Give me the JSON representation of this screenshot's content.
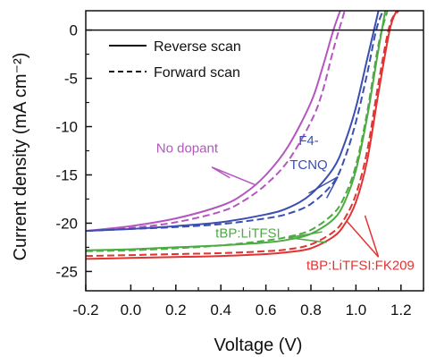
{
  "chart_data": {
    "type": "line",
    "xlabel": "Voltage (V)",
    "ylabel": "Current density (mA cm⁻²)",
    "xlim": [
      -0.2,
      1.3
    ],
    "ylim": [
      -27,
      2
    ],
    "xticks": [
      -0.2,
      0.0,
      0.2,
      0.4,
      0.6,
      0.8,
      1.0,
      1.2
    ],
    "xtick_labels": [
      "-0.2",
      "0.0",
      "0.2",
      "0.4",
      "0.6",
      "0.8",
      "1.0",
      "1.2"
    ],
    "yticks": [
      0,
      -5,
      -10,
      -15,
      -20,
      -25
    ],
    "ytick_labels": [
      "0",
      "-5",
      "-10",
      "-15",
      "-20",
      "-25"
    ],
    "grid": false,
    "legend": {
      "position": "top-left",
      "entries": [
        {
          "label": "Reverse scan",
          "style": "solid"
        },
        {
          "label": "Forward scan",
          "style": "dashed"
        }
      ]
    },
    "series": [
      {
        "group": "No dopant",
        "color": "#b455c0",
        "style": "solid",
        "x": [
          -0.2,
          0.0,
          0.2,
          0.4,
          0.5,
          0.6,
          0.7,
          0.8,
          0.85,
          0.9,
          0.93
        ],
        "y": [
          -20.8,
          -20.3,
          -19.5,
          -18.2,
          -17.0,
          -15.0,
          -12.0,
          -7.5,
          -4.0,
          0.0,
          2.0
        ]
      },
      {
        "group": "No dopant",
        "color": "#b455c0",
        "style": "dashed",
        "x": [
          -0.2,
          0.0,
          0.2,
          0.4,
          0.5,
          0.6,
          0.7,
          0.8,
          0.85,
          0.9,
          0.95
        ],
        "y": [
          -20.8,
          -20.5,
          -19.9,
          -18.8,
          -17.7,
          -16.0,
          -13.5,
          -9.5,
          -6.5,
          -2.0,
          2.0
        ]
      },
      {
        "group": "F4-TCNQ",
        "color": "#3b4fb0",
        "style": "solid",
        "x": [
          -0.2,
          0.0,
          0.2,
          0.4,
          0.6,
          0.7,
          0.8,
          0.9,
          0.95,
          1.0,
          1.05,
          1.08,
          1.1
        ],
        "y": [
          -20.8,
          -20.6,
          -20.3,
          -19.9,
          -19.1,
          -18.4,
          -17.0,
          -14.3,
          -11.7,
          -8.0,
          -3.0,
          0.0,
          2.0
        ]
      },
      {
        "group": "F4-TCNQ",
        "color": "#3b4fb0",
        "style": "dashed",
        "x": [
          -0.2,
          0.0,
          0.2,
          0.4,
          0.6,
          0.7,
          0.8,
          0.9,
          0.95,
          1.0,
          1.05,
          1.09,
          1.12
        ],
        "y": [
          -20.8,
          -20.6,
          -20.4,
          -20.1,
          -19.5,
          -19.0,
          -18.0,
          -15.8,
          -13.3,
          -9.5,
          -4.5,
          0.0,
          2.0
        ]
      },
      {
        "group": "tBP:LiTFSI",
        "color": "#4cab42",
        "style": "solid",
        "x": [
          -0.2,
          0.0,
          0.2,
          0.4,
          0.6,
          0.7,
          0.8,
          0.9,
          0.95,
          1.0,
          1.05,
          1.1,
          1.13
        ],
        "y": [
          -22.8,
          -22.7,
          -22.5,
          -22.3,
          -22.0,
          -21.7,
          -21.1,
          -19.6,
          -17.8,
          -14.5,
          -9.0,
          -2.0,
          2.0
        ]
      },
      {
        "group": "tBP:LiTFSI",
        "color": "#4cab42",
        "style": "dashed",
        "x": [
          -0.2,
          0.0,
          0.2,
          0.4,
          0.6,
          0.7,
          0.8,
          0.9,
          0.95,
          1.0,
          1.05,
          1.1,
          1.14
        ],
        "y": [
          -22.9,
          -22.8,
          -22.6,
          -22.3,
          -21.8,
          -21.4,
          -20.7,
          -19.0,
          -17.2,
          -14.0,
          -8.5,
          -1.5,
          2.0
        ]
      },
      {
        "group": "tBP:LiTFSI:FK209",
        "color": "#e23333",
        "style": "solid",
        "x": [
          -0.2,
          0.0,
          0.2,
          0.4,
          0.6,
          0.7,
          0.8,
          0.9,
          0.95,
          1.0,
          1.05,
          1.1,
          1.15,
          1.18
        ],
        "y": [
          -23.7,
          -23.6,
          -23.5,
          -23.4,
          -23.2,
          -23.0,
          -22.6,
          -21.4,
          -20.1,
          -17.8,
          -13.5,
          -6.5,
          0.0,
          2.0
        ]
      },
      {
        "group": "tBP:LiTFSI:FK209",
        "color": "#e23333",
        "style": "dashed",
        "x": [
          -0.2,
          0.0,
          0.2,
          0.4,
          0.6,
          0.7,
          0.8,
          0.9,
          0.95,
          1.0,
          1.05,
          1.1,
          1.15,
          1.19
        ],
        "y": [
          -23.4,
          -23.3,
          -23.2,
          -23.1,
          -22.9,
          -22.7,
          -22.2,
          -20.9,
          -19.5,
          -17.0,
          -12.5,
          -5.5,
          0.5,
          2.0
        ]
      }
    ],
    "annotations": [
      {
        "text": "No dopant",
        "color": "#b455c0",
        "x": 0.25,
        "y": -12.7,
        "anchor": "middle",
        "pointers": [
          [
            0.44,
            -15.3
          ],
          [
            0.55,
            -16.0
          ]
        ],
        "from": [
          0.36,
          -14.2
        ]
      },
      {
        "text": "F4-",
        "color": "#3b4fb0",
        "x": 0.79,
        "y": -11.9,
        "anchor": "middle"
      },
      {
        "text": "TCNQ",
        "color": "#3b4fb0",
        "x": 0.79,
        "y": -14.4,
        "anchor": "middle",
        "pointers": [
          [
            0.79,
            -16.9
          ],
          [
            0.87,
            -17.4
          ]
        ],
        "from": [
          0.92,
          -15.2
        ]
      },
      {
        "text": "tBP:LiTFSI",
        "color": "#4cab42",
        "x": 0.52,
        "y": -21.5,
        "anchor": "middle",
        "pointers": [
          [
            0.85,
            -20.9
          ],
          [
            0.87,
            -22.0
          ]
        ],
        "from": [
          0.7,
          -21.5
        ]
      },
      {
        "text": "tBP:LiTFSI:FK209",
        "color": "#e23333",
        "x": 1.02,
        "y": -24.8,
        "anchor": "middle",
        "pointers": [
          [
            0.96,
            -19.8
          ],
          [
            1.04,
            -19.2
          ]
        ],
        "from": [
          1.1,
          -23.5
        ]
      }
    ]
  }
}
